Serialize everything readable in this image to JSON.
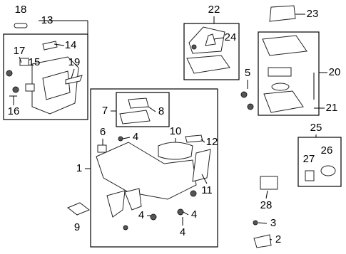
{
  "callouts": [
    {
      "label": "18"
    },
    {
      "label": "13"
    },
    {
      "label": "17"
    },
    {
      "label": "15"
    },
    {
      "label": "14"
    },
    {
      "label": "19"
    },
    {
      "label": "16"
    },
    {
      "label": "22"
    },
    {
      "label": "24"
    },
    {
      "label": "23"
    },
    {
      "label": "5"
    },
    {
      "label": "20"
    },
    {
      "label": "21"
    },
    {
      "label": "7"
    },
    {
      "label": "8"
    },
    {
      "label": "6"
    },
    {
      "label": "4"
    },
    {
      "label": "10"
    },
    {
      "label": "12"
    },
    {
      "label": "1"
    },
    {
      "label": "11"
    },
    {
      "label": "25"
    },
    {
      "label": "27"
    },
    {
      "label": "26"
    },
    {
      "label": "9"
    },
    {
      "label": "4"
    },
    {
      "label": "4"
    },
    {
      "label": "4"
    },
    {
      "label": "28"
    },
    {
      "label": "3"
    },
    {
      "label": "2"
    }
  ]
}
